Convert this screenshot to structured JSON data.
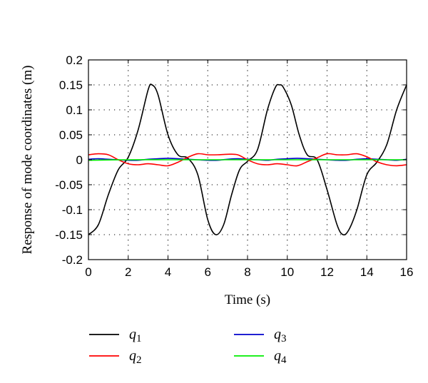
{
  "chart_data": {
    "type": "line",
    "xlabel": "Time (s)",
    "ylabel": "Response of mode coordinates (m)",
    "xlim": [
      0,
      16
    ],
    "ylim": [
      -0.2,
      0.2
    ],
    "x_ticks": [
      "0",
      "2",
      "4",
      "6",
      "8",
      "10",
      "12",
      "14",
      "16"
    ],
    "y_ticks": [
      "0.2",
      "0.15",
      "0.1",
      "0.05",
      "0",
      "-0.05",
      "-0.1",
      "-0.15",
      "-0.2"
    ],
    "grid": true,
    "legend_position": "below",
    "series": [
      {
        "name": "q1",
        "label_letter": "q",
        "label_subscript": "1",
        "color": "#000000",
        "x": [
          0.0,
          0.5,
          1.0,
          1.5,
          2.0,
          2.5,
          3.0,
          3.2,
          3.5,
          4.0,
          4.5,
          5.0,
          5.5,
          6.0,
          6.4,
          6.8,
          7.2,
          7.6,
          8.0,
          8.5,
          9.0,
          9.4,
          9.6,
          9.8,
          10.2,
          10.6,
          11.0,
          11.5,
          12.0,
          12.5,
          12.8,
          13.1,
          13.5,
          14.0,
          14.5,
          15.0,
          15.5,
          16.0
        ],
        "y": [
          -0.15,
          -0.13,
          -0.07,
          -0.02,
          0.005,
          0.06,
          0.14,
          0.15,
          0.13,
          0.05,
          0.01,
          0.003,
          -0.03,
          -0.12,
          -0.15,
          -0.13,
          -0.07,
          -0.02,
          -0.003,
          0.02,
          0.1,
          0.145,
          0.15,
          0.145,
          0.11,
          0.05,
          0.01,
          0.0,
          -0.06,
          -0.13,
          -0.15,
          -0.14,
          -0.1,
          -0.03,
          -0.005,
          0.03,
          0.1,
          0.15
        ]
      },
      {
        "name": "q2",
        "label_letter": "q",
        "label_subscript": "2",
        "color": "#ff0000",
        "x": [
          0.0,
          0.5,
          1.0,
          1.5,
          2.0,
          2.5,
          3.0,
          3.5,
          4.0,
          4.5,
          5.0,
          5.5,
          6.0,
          6.5,
          7.0,
          7.5,
          8.0,
          8.5,
          9.0,
          9.5,
          10.0,
          10.5,
          11.0,
          11.5,
          12.0,
          12.5,
          13.0,
          13.5,
          14.0,
          14.5,
          15.0,
          15.5,
          16.0
        ],
        "y": [
          0.01,
          0.012,
          0.01,
          0.0,
          -0.008,
          -0.01,
          -0.008,
          -0.01,
          -0.012,
          -0.005,
          0.005,
          0.012,
          0.01,
          0.01,
          0.011,
          0.01,
          0.0,
          -0.008,
          -0.01,
          -0.008,
          -0.01,
          -0.012,
          -0.004,
          0.004,
          0.012,
          0.01,
          0.01,
          0.012,
          0.006,
          -0.004,
          -0.01,
          -0.012,
          -0.01
        ]
      },
      {
        "name": "q3",
        "label_letter": "q",
        "label_subscript": "3",
        "color": "#0000cc",
        "x": [
          0.0,
          0.5,
          1.0,
          1.5,
          2.0,
          2.5,
          3.0,
          3.5,
          4.0,
          4.5,
          5.0,
          5.5,
          6.0,
          6.5,
          7.0,
          7.5,
          8.0,
          8.5,
          9.0,
          9.5,
          10.0,
          10.5,
          11.0,
          11.5,
          12.0,
          12.5,
          13.0,
          13.5,
          14.0,
          14.5,
          15.0,
          15.5,
          16.0
        ],
        "y": [
          0.001,
          0.002,
          0.001,
          0.0,
          -0.001,
          -0.001,
          0.001,
          0.002,
          0.003,
          0.002,
          0.001,
          0.0,
          -0.001,
          -0.001,
          0.001,
          0.002,
          0.001,
          0.0,
          -0.001,
          0.001,
          0.002,
          0.003,
          0.002,
          0.001,
          0.0,
          -0.001,
          -0.001,
          0.001,
          0.002,
          0.001,
          0.0,
          -0.001,
          0.001
        ]
      },
      {
        "name": "q4",
        "label_letter": "q",
        "label_subscript": "4",
        "color": "#00ee00",
        "x": [
          0.0,
          2.0,
          4.0,
          6.0,
          8.0,
          10.0,
          12.0,
          14.0,
          16.0
        ],
        "y": [
          -0.001,
          0.0,
          0.0,
          0.0,
          0.0,
          0.0,
          0.0,
          0.0,
          0.0
        ]
      }
    ]
  }
}
